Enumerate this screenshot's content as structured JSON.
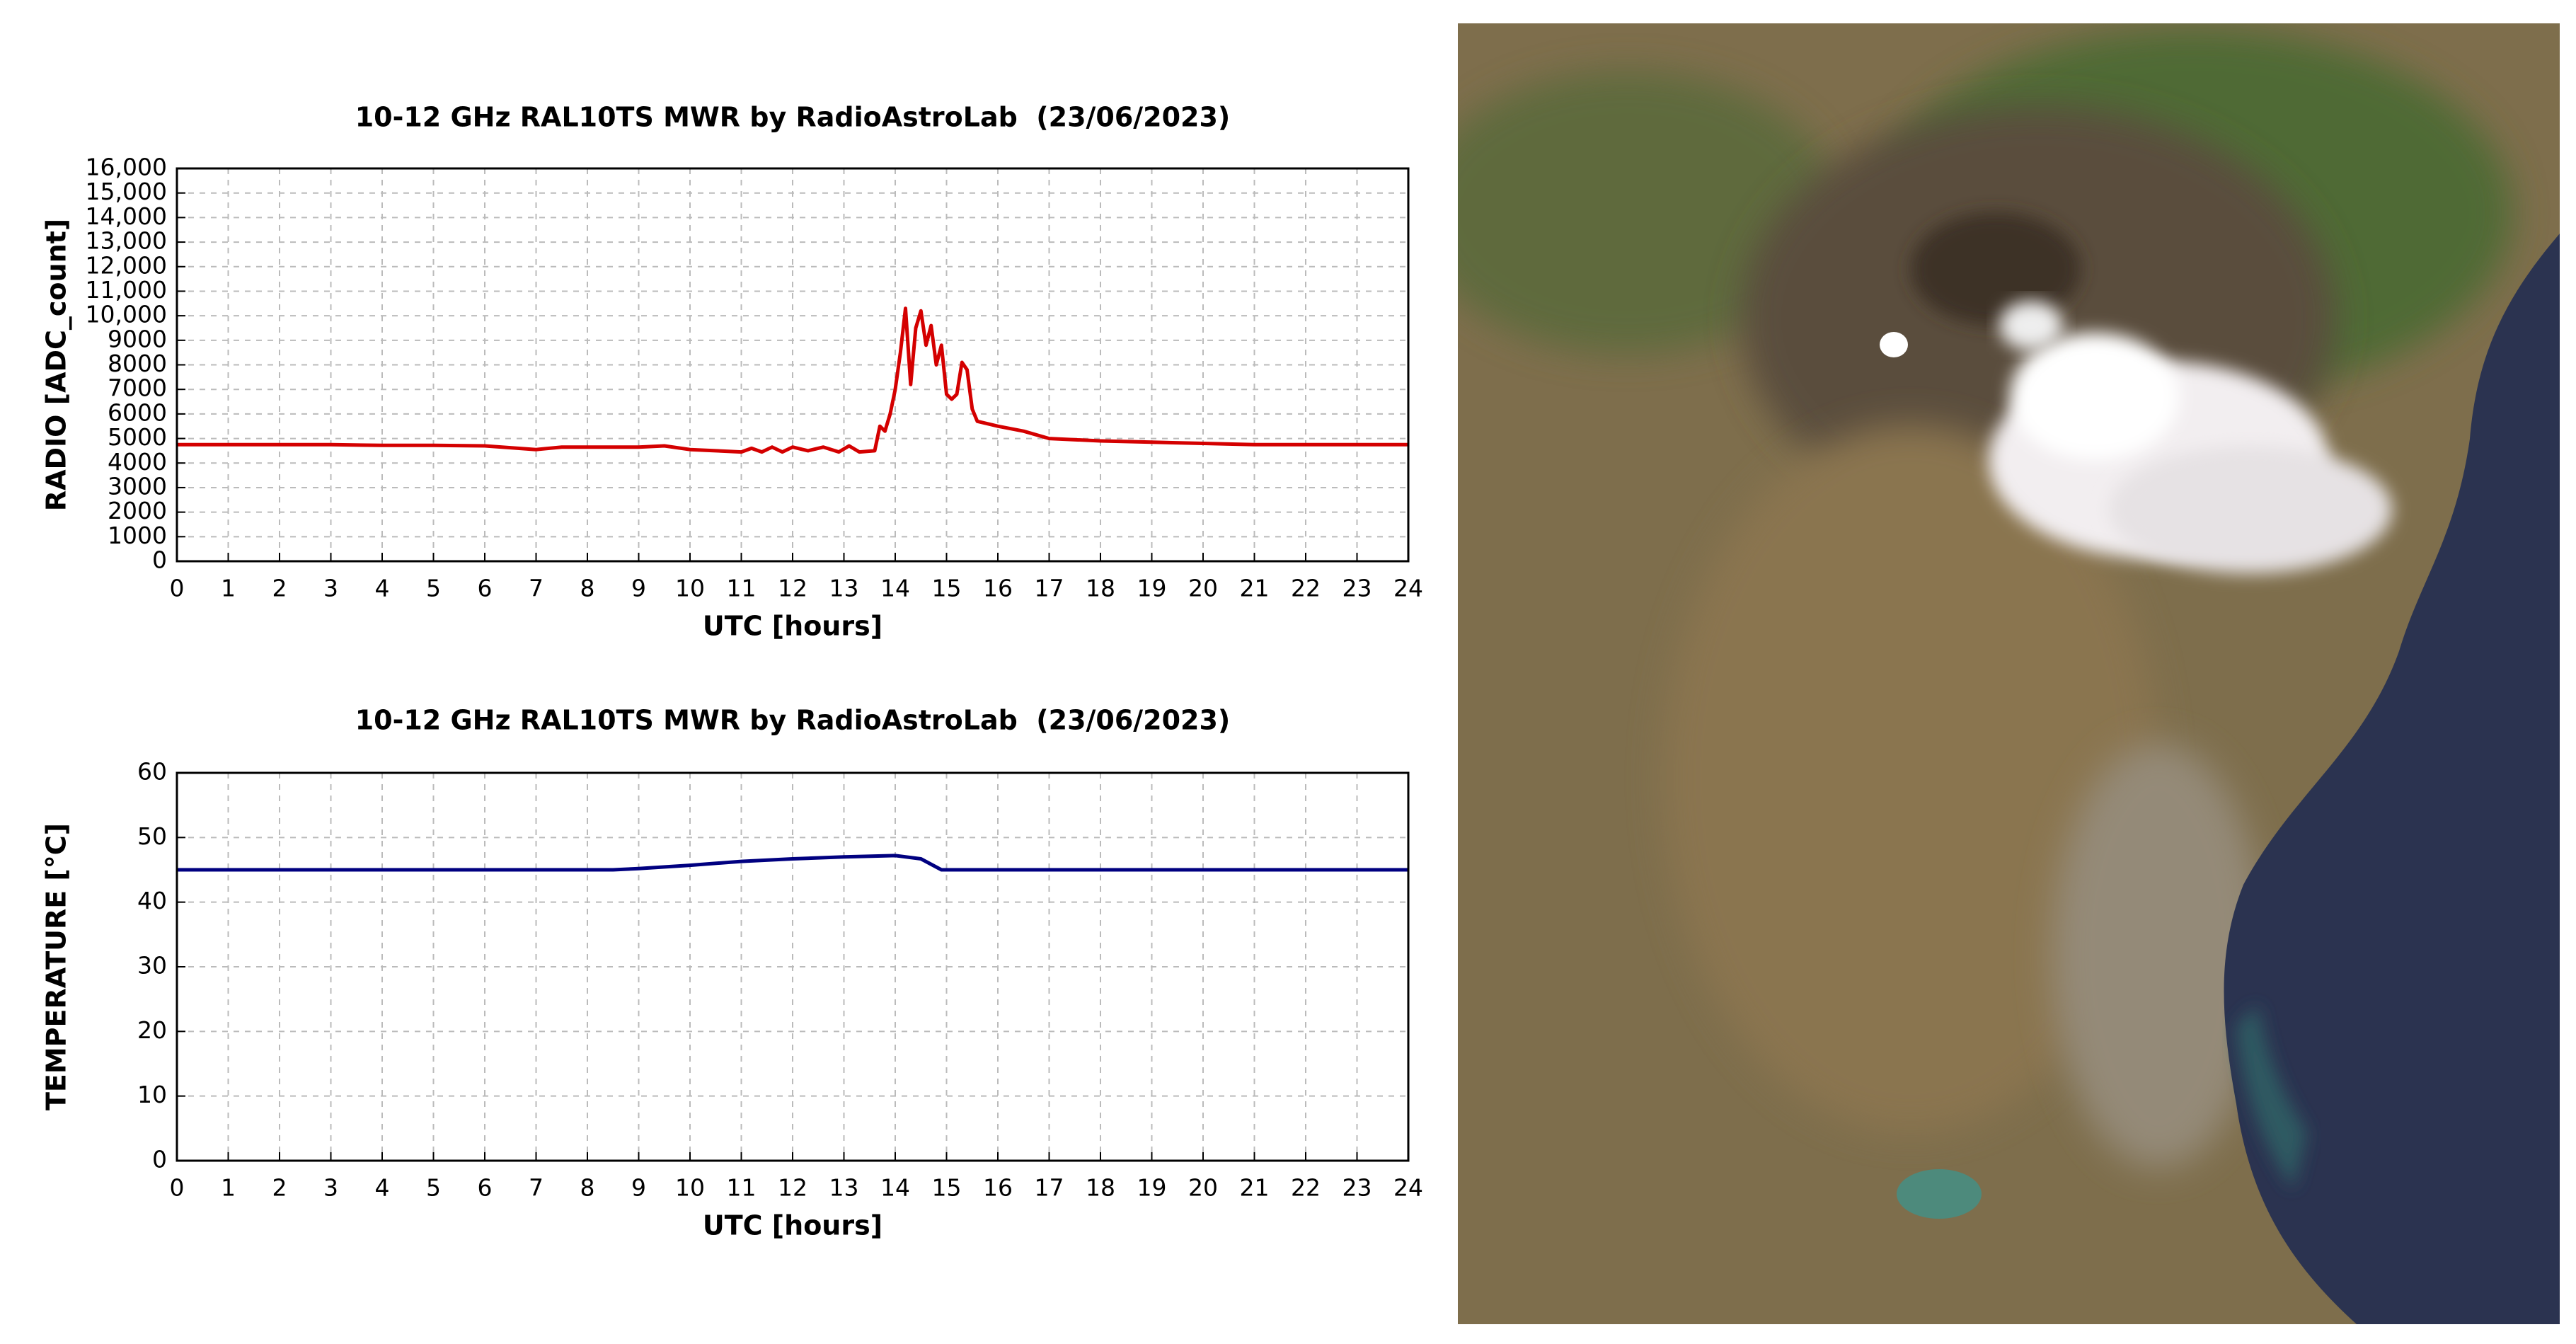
{
  "chart_data": [
    {
      "type": "line",
      "title": "10-12 GHz RAL10TS MWR by RadioAstroLab  (23/06/2023)",
      "x_label": "UTC [hours]",
      "y_label": "RADIO [ADC_count]",
      "x": [
        0,
        1,
        2,
        3,
        4,
        5,
        6,
        7,
        7.5,
        8,
        9,
        9.5,
        10,
        10.5,
        11,
        11.2,
        11.4,
        11.6,
        11.8,
        12,
        12.3,
        12.6,
        12.9,
        13.1,
        13.3,
        13.6,
        13.7,
        13.8,
        13.9,
        14.0,
        14.1,
        14.2,
        14.3,
        14.4,
        14.5,
        14.6,
        14.7,
        14.8,
        14.9,
        15.0,
        15.1,
        15.2,
        15.3,
        15.4,
        15.5,
        15.6,
        16,
        16.5,
        17,
        18,
        19,
        20,
        21,
        22,
        23,
        24
      ],
      "values": [
        4750,
        4750,
        4750,
        4750,
        4720,
        4720,
        4700,
        4550,
        4650,
        4650,
        4650,
        4700,
        4550,
        4500,
        4450,
        4600,
        4450,
        4650,
        4450,
        4650,
        4500,
        4650,
        4450,
        4700,
        4450,
        4500,
        5500,
        5300,
        6000,
        7000,
        8500,
        10300,
        7200,
        9500,
        10200,
        8800,
        9600,
        8000,
        8800,
        6800,
        6600,
        6800,
        8100,
        7800,
        6200,
        5700,
        5500,
        5300,
        5000,
        4900,
        4850,
        4800,
        4750,
        4750,
        4750,
        4750
      ],
      "color": "#d40000",
      "xlim": [
        0,
        24
      ],
      "ylim": [
        0,
        16000
      ],
      "xticks": [
        0,
        1,
        2,
        3,
        4,
        5,
        6,
        7,
        8,
        9,
        10,
        11,
        12,
        13,
        14,
        15,
        16,
        17,
        18,
        19,
        20,
        21,
        22,
        23,
        24
      ],
      "yticks": [
        0,
        1000,
        2000,
        3000,
        4000,
        5000,
        6000,
        7000,
        8000,
        9000,
        {
          "value": 10000,
          "label": "10,000"
        },
        {
          "value": 11000,
          "label": "11,000"
        },
        {
          "value": 12000,
          "label": "12,000"
        },
        {
          "value": 13000,
          "label": "13,000"
        },
        {
          "value": 14000,
          "label": "14,000"
        },
        {
          "value": 15000,
          "label": "15,000"
        },
        {
          "value": 16000,
          "label": "16,000"
        }
      ],
      "grid": true
    },
    {
      "type": "line",
      "title": "10-12 GHz RAL10TS MWR by RadioAstroLab  (23/06/2023)",
      "x_label": "UTC [hours]",
      "y_label": "TEMPERATURE [°C]",
      "x": [
        0,
        4,
        8.5,
        9,
        10,
        11,
        12,
        13,
        14,
        14.5,
        14.9,
        15,
        20,
        24
      ],
      "values": [
        45,
        45,
        45,
        45.2,
        45.7,
        46.3,
        46.7,
        47,
        47.2,
        46.7,
        45,
        45,
        45,
        45
      ],
      "color": "#000080",
      "xlim": [
        0,
        24
      ],
      "ylim": [
        0,
        60
      ],
      "xticks": [
        0,
        1,
        2,
        3,
        4,
        5,
        6,
        7,
        8,
        9,
        10,
        11,
        12,
        13,
        14,
        15,
        16,
        17,
        18,
        19,
        20,
        21,
        22,
        23,
        24
      ],
      "yticks": [
        0,
        10,
        20,
        30,
        40,
        50,
        60
      ],
      "grid": true
    }
  ]
}
